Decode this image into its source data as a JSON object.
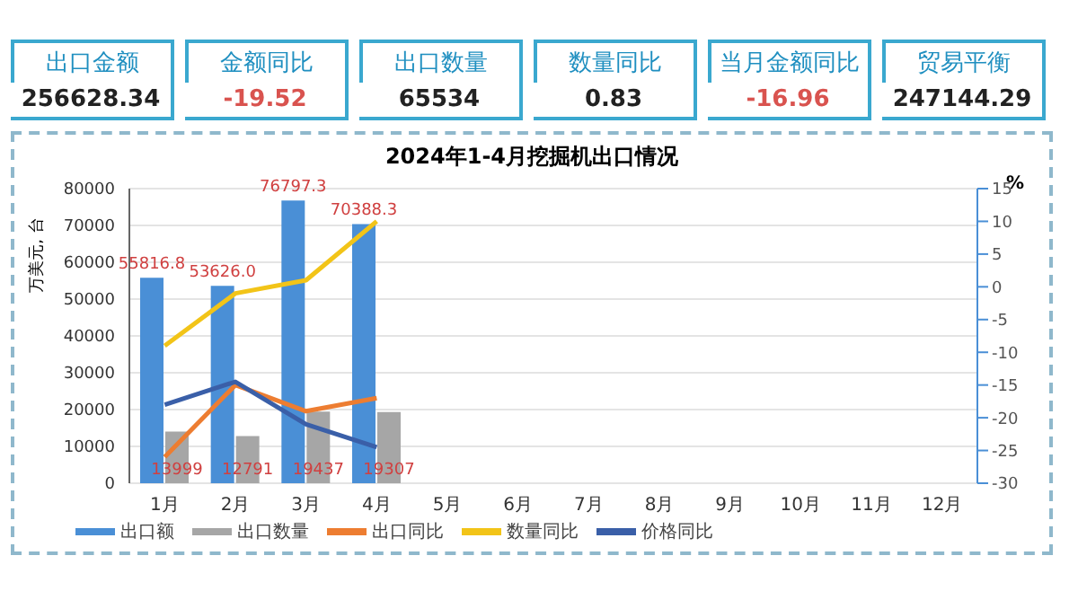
{
  "chart_data": [
    {
      "type": "other",
      "annotations": [
        "出口金额",
        "256628.34",
        "金额同比",
        "-19.52",
        "出口数量",
        "65534",
        "数量同比",
        "0.83",
        "当月金额同比",
        "-16.96",
        "贸易平衡",
        "247144.29"
      ]
    },
    {
      "type": "bar",
      "title": "2024年1-4月挖掘机出口情况",
      "ylabel": "万美元, 台",
      "y2label": "%",
      "categories": [
        "1月",
        "2月",
        "3月",
        "4月",
        "5月",
        "6月",
        "7月",
        "8月",
        "9月",
        "10月",
        "11月",
        "12月"
      ],
      "series": [
        {
          "name": "出口额",
          "type": "bar",
          "color": "#4a8fd6",
          "values": [
            55816.8,
            53626.0,
            76797.3,
            70388.3,
            null,
            null,
            null,
            null,
            null,
            null,
            null,
            null
          ],
          "value_labels": [
            "55816.8",
            "53626.0",
            "76797.3",
            "70388.3",
            null,
            null,
            null,
            null,
            null,
            null,
            null,
            null
          ]
        },
        {
          "name": "出口数量",
          "type": "bar",
          "color": "#a6a6a6",
          "values": [
            13999,
            12791,
            19437,
            19307,
            null,
            null,
            null,
            null,
            null,
            null,
            null,
            null
          ],
          "value_labels": [
            "13999",
            "12791",
            "19437",
            "19307",
            null,
            null,
            null,
            null,
            null,
            null,
            null,
            null
          ]
        },
        {
          "name": "出口同比",
          "type": "line",
          "axis": "y2",
          "color": "#ed7d31",
          "values": [
            -26,
            -15,
            -19,
            -17,
            null,
            null,
            null,
            null,
            null,
            null,
            null,
            null
          ]
        },
        {
          "name": "数量同比",
          "type": "line",
          "axis": "y2",
          "color": "#f2c418",
          "values": [
            -9,
            -1,
            1,
            10,
            null,
            null,
            null,
            null,
            null,
            null,
            null,
            null
          ]
        },
        {
          "name": "价格同比",
          "type": "line",
          "axis": "y2",
          "color": "#3a5fa8",
          "values": [
            -18,
            -14.5,
            -21,
            -24.5,
            null,
            null,
            null,
            null,
            null,
            null,
            null,
            null
          ]
        }
      ],
      "ylim": [
        0,
        80000
      ],
      "yticks": [
        0,
        10000,
        20000,
        30000,
        40000,
        50000,
        60000,
        70000,
        80000
      ],
      "y2lim": [
        -30,
        15
      ],
      "y2ticks": [
        -30,
        -25,
        -20,
        -15,
        -10,
        -5,
        0,
        5,
        10,
        15
      ],
      "grid": "y",
      "legend": "bottom",
      "marker": "none",
      "line_style": "solid"
    }
  ]
}
